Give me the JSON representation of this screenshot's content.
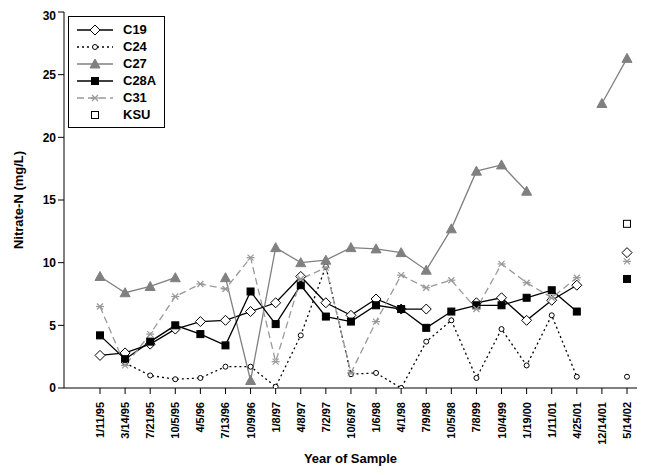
{
  "chart_data": {
    "type": "line",
    "x_label": "Year of Sample",
    "y_label": "Nitrate-N (mg/L)",
    "categories": [
      "1/11/95",
      "3/14/95",
      "7/21/95",
      "10/5/95",
      "4/5/96",
      "7/13/96",
      "10/9/96",
      "1/8/97",
      "4/8/97",
      "7/2/97",
      "10/6/97",
      "1/6/98",
      "4/1/98",
      "7/9/98",
      "10/5/98",
      "7/8/99",
      "10/4/99",
      "1/19/00",
      "1/11/01",
      "4/25/01",
      "12/14/01",
      "5/14/02"
    ],
    "ylim": [
      0,
      30
    ],
    "yticks": [
      0,
      5,
      10,
      15,
      20,
      25,
      30
    ],
    "grid": false,
    "legend": "upper left",
    "series": [
      {
        "name": "C19",
        "color": "#000000",
        "marker": "open_diamond",
        "line_style": "solid",
        "values": [
          2.6,
          2.8,
          3.5,
          4.7,
          5.3,
          5.4,
          6.1,
          6.8,
          8.9,
          6.8,
          5.8,
          7.1,
          6.3,
          6.3,
          null,
          6.8,
          7.2,
          5.4,
          7.0,
          8.2,
          null,
          10.8
        ]
      },
      {
        "name": "C24",
        "color": "#000000",
        "marker": "open_circle",
        "line_style": "dotted",
        "values": [
          null,
          2.0,
          1.0,
          0.7,
          0.8,
          1.7,
          1.7,
          0.1,
          4.2,
          9.7,
          1.1,
          1.2,
          0.0,
          3.7,
          5.4,
          0.8,
          4.7,
          1.8,
          5.8,
          0.9,
          null,
          0.9
        ]
      },
      {
        "name": "C27",
        "color": "#808080",
        "marker": "triangle",
        "line_style": "solid",
        "values": [
          8.9,
          7.6,
          8.1,
          8.8,
          null,
          8.8,
          0.6,
          11.2,
          10.0,
          10.2,
          11.2,
          11.1,
          10.8,
          9.4,
          12.7,
          17.3,
          17.8,
          15.7,
          null,
          null,
          22.7,
          26.3
        ]
      },
      {
        "name": "C28A",
        "color": "#000000",
        "marker": "square",
        "line_style": "solid",
        "values": [
          4.2,
          2.3,
          3.7,
          5.0,
          4.3,
          3.4,
          7.7,
          5.1,
          8.2,
          5.7,
          5.3,
          6.6,
          6.3,
          4.8,
          6.1,
          6.6,
          6.6,
          7.2,
          7.8,
          6.1,
          null,
          8.7
        ]
      },
      {
        "name": "C31",
        "color": "#999999",
        "marker": "asterisk",
        "line_style": "dashed",
        "values": [
          6.5,
          1.8,
          4.3,
          7.3,
          8.3,
          7.9,
          10.4,
          2.1,
          8.7,
          9.6,
          1.2,
          5.3,
          9.0,
          8.0,
          8.6,
          6.3,
          9.9,
          8.4,
          7.2,
          8.8,
          null,
          10.1
        ]
      },
      {
        "name": "KSU",
        "color": "#000000",
        "marker": "open_square",
        "line_style": "none",
        "values": [
          null,
          null,
          null,
          null,
          null,
          null,
          null,
          null,
          null,
          null,
          null,
          null,
          null,
          null,
          null,
          null,
          null,
          null,
          null,
          null,
          null,
          13.1
        ]
      }
    ]
  }
}
